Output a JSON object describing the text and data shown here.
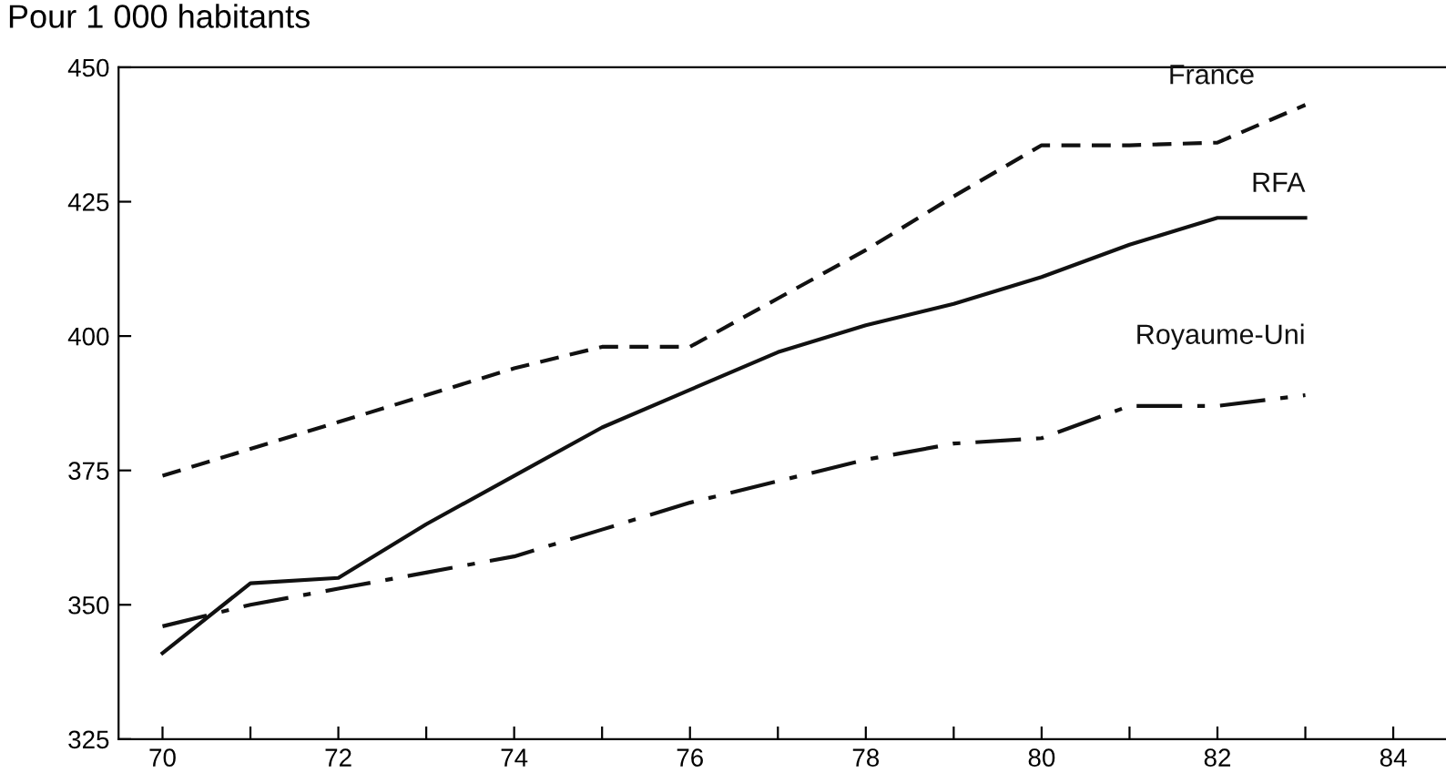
{
  "chart_data": {
    "type": "line",
    "title": "Pour 1 000 habitants",
    "x": [
      70,
      71,
      72,
      73,
      74,
      75,
      76,
      77,
      78,
      79,
      80,
      81,
      82,
      83
    ],
    "series": [
      {
        "name": "France",
        "color": "#111111",
        "line_style": "dashed",
        "values": [
          374,
          379,
          384,
          389,
          394,
          398,
          398,
          407,
          416,
          426,
          435.5,
          435.5,
          436,
          443
        ]
      },
      {
        "name": "RFA",
        "color": "#111111",
        "line_style": "solid",
        "values": [
          341,
          354,
          355,
          365,
          374,
          383,
          390,
          397,
          402,
          406,
          411,
          417,
          422,
          422
        ]
      },
      {
        "name": "Royaume-Uni",
        "color": "#111111",
        "line_style": "dashdot",
        "values": [
          346,
          350,
          353,
          356,
          359,
          364,
          369,
          373,
          377,
          380,
          381,
          387,
          387,
          389
        ]
      }
    ],
    "xlim": [
      69.5,
      84.6
    ],
    "ylim": [
      325,
      450
    ],
    "xticks": [
      70,
      {
        "value": 71,
        "label": null
      },
      72,
      {
        "value": 73,
        "label": null
      },
      74,
      {
        "value": 75,
        "label": null
      },
      76,
      {
        "value": 77,
        "label": null
      },
      78,
      {
        "value": 79,
        "label": null
      },
      80,
      {
        "value": 81,
        "label": null
      },
      82,
      {
        "value": 83,
        "label": null
      },
      84
    ],
    "yticks": [
      325,
      350,
      375,
      400,
      425,
      450
    ],
    "grid": false,
    "legend": false,
    "marker": "none"
  }
}
